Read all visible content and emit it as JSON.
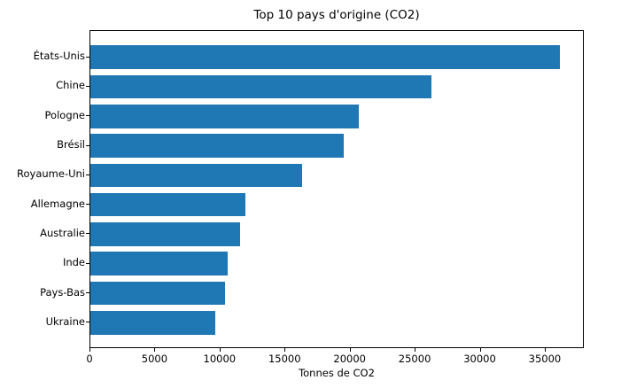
{
  "chart_data": {
    "type": "bar",
    "orientation": "horizontal",
    "title": "Top 10 pays d'origine (CO2)",
    "xlabel": "Tonnes de CO2",
    "ylabel": "",
    "categories": [
      "États-Unis",
      "Chine",
      "Pologne",
      "Brésil",
      "Royaume-Uni",
      "Allemagne",
      "Australie",
      "Inde",
      "Pays-Bas",
      "Ukraine"
    ],
    "values": [
      36200,
      26300,
      20700,
      19550,
      16350,
      11950,
      11550,
      10600,
      10400,
      9650
    ],
    "xticks": [
      0,
      5000,
      10000,
      15000,
      20000,
      25000,
      30000,
      35000
    ],
    "xlim": [
      0,
      38000
    ],
    "bar_color": "#1f77b4",
    "grid": false,
    "legend": null
  }
}
